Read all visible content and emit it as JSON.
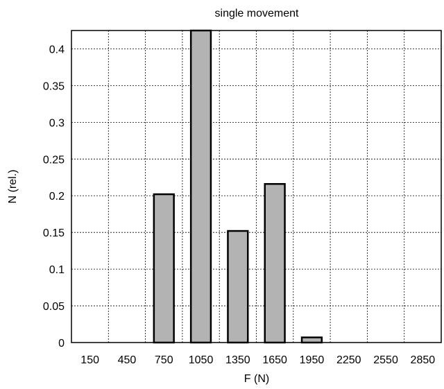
{
  "chart_data": {
    "type": "bar",
    "title": "single movement",
    "xlabel": "F (N)",
    "ylabel": "N (rel.)",
    "categories": [
      "150",
      "450",
      "750",
      "1050",
      "1350",
      "1650",
      "1950",
      "2250",
      "2550",
      "2850"
    ],
    "values": [
      0,
      0,
      0.202,
      0.425,
      0.152,
      0.216,
      0.007,
      0,
      0,
      0
    ],
    "ylim": [
      0,
      0.425
    ],
    "yticks": [
      0,
      0.05,
      0.1,
      0.15,
      0.2,
      0.25,
      0.3,
      0.35,
      0.4
    ],
    "grid": true,
    "legend": "none",
    "colors": {
      "bar_fill": "#b3b3b3",
      "bar_stroke": "#000000",
      "grid": "#000000",
      "background": "#ffffff"
    }
  }
}
